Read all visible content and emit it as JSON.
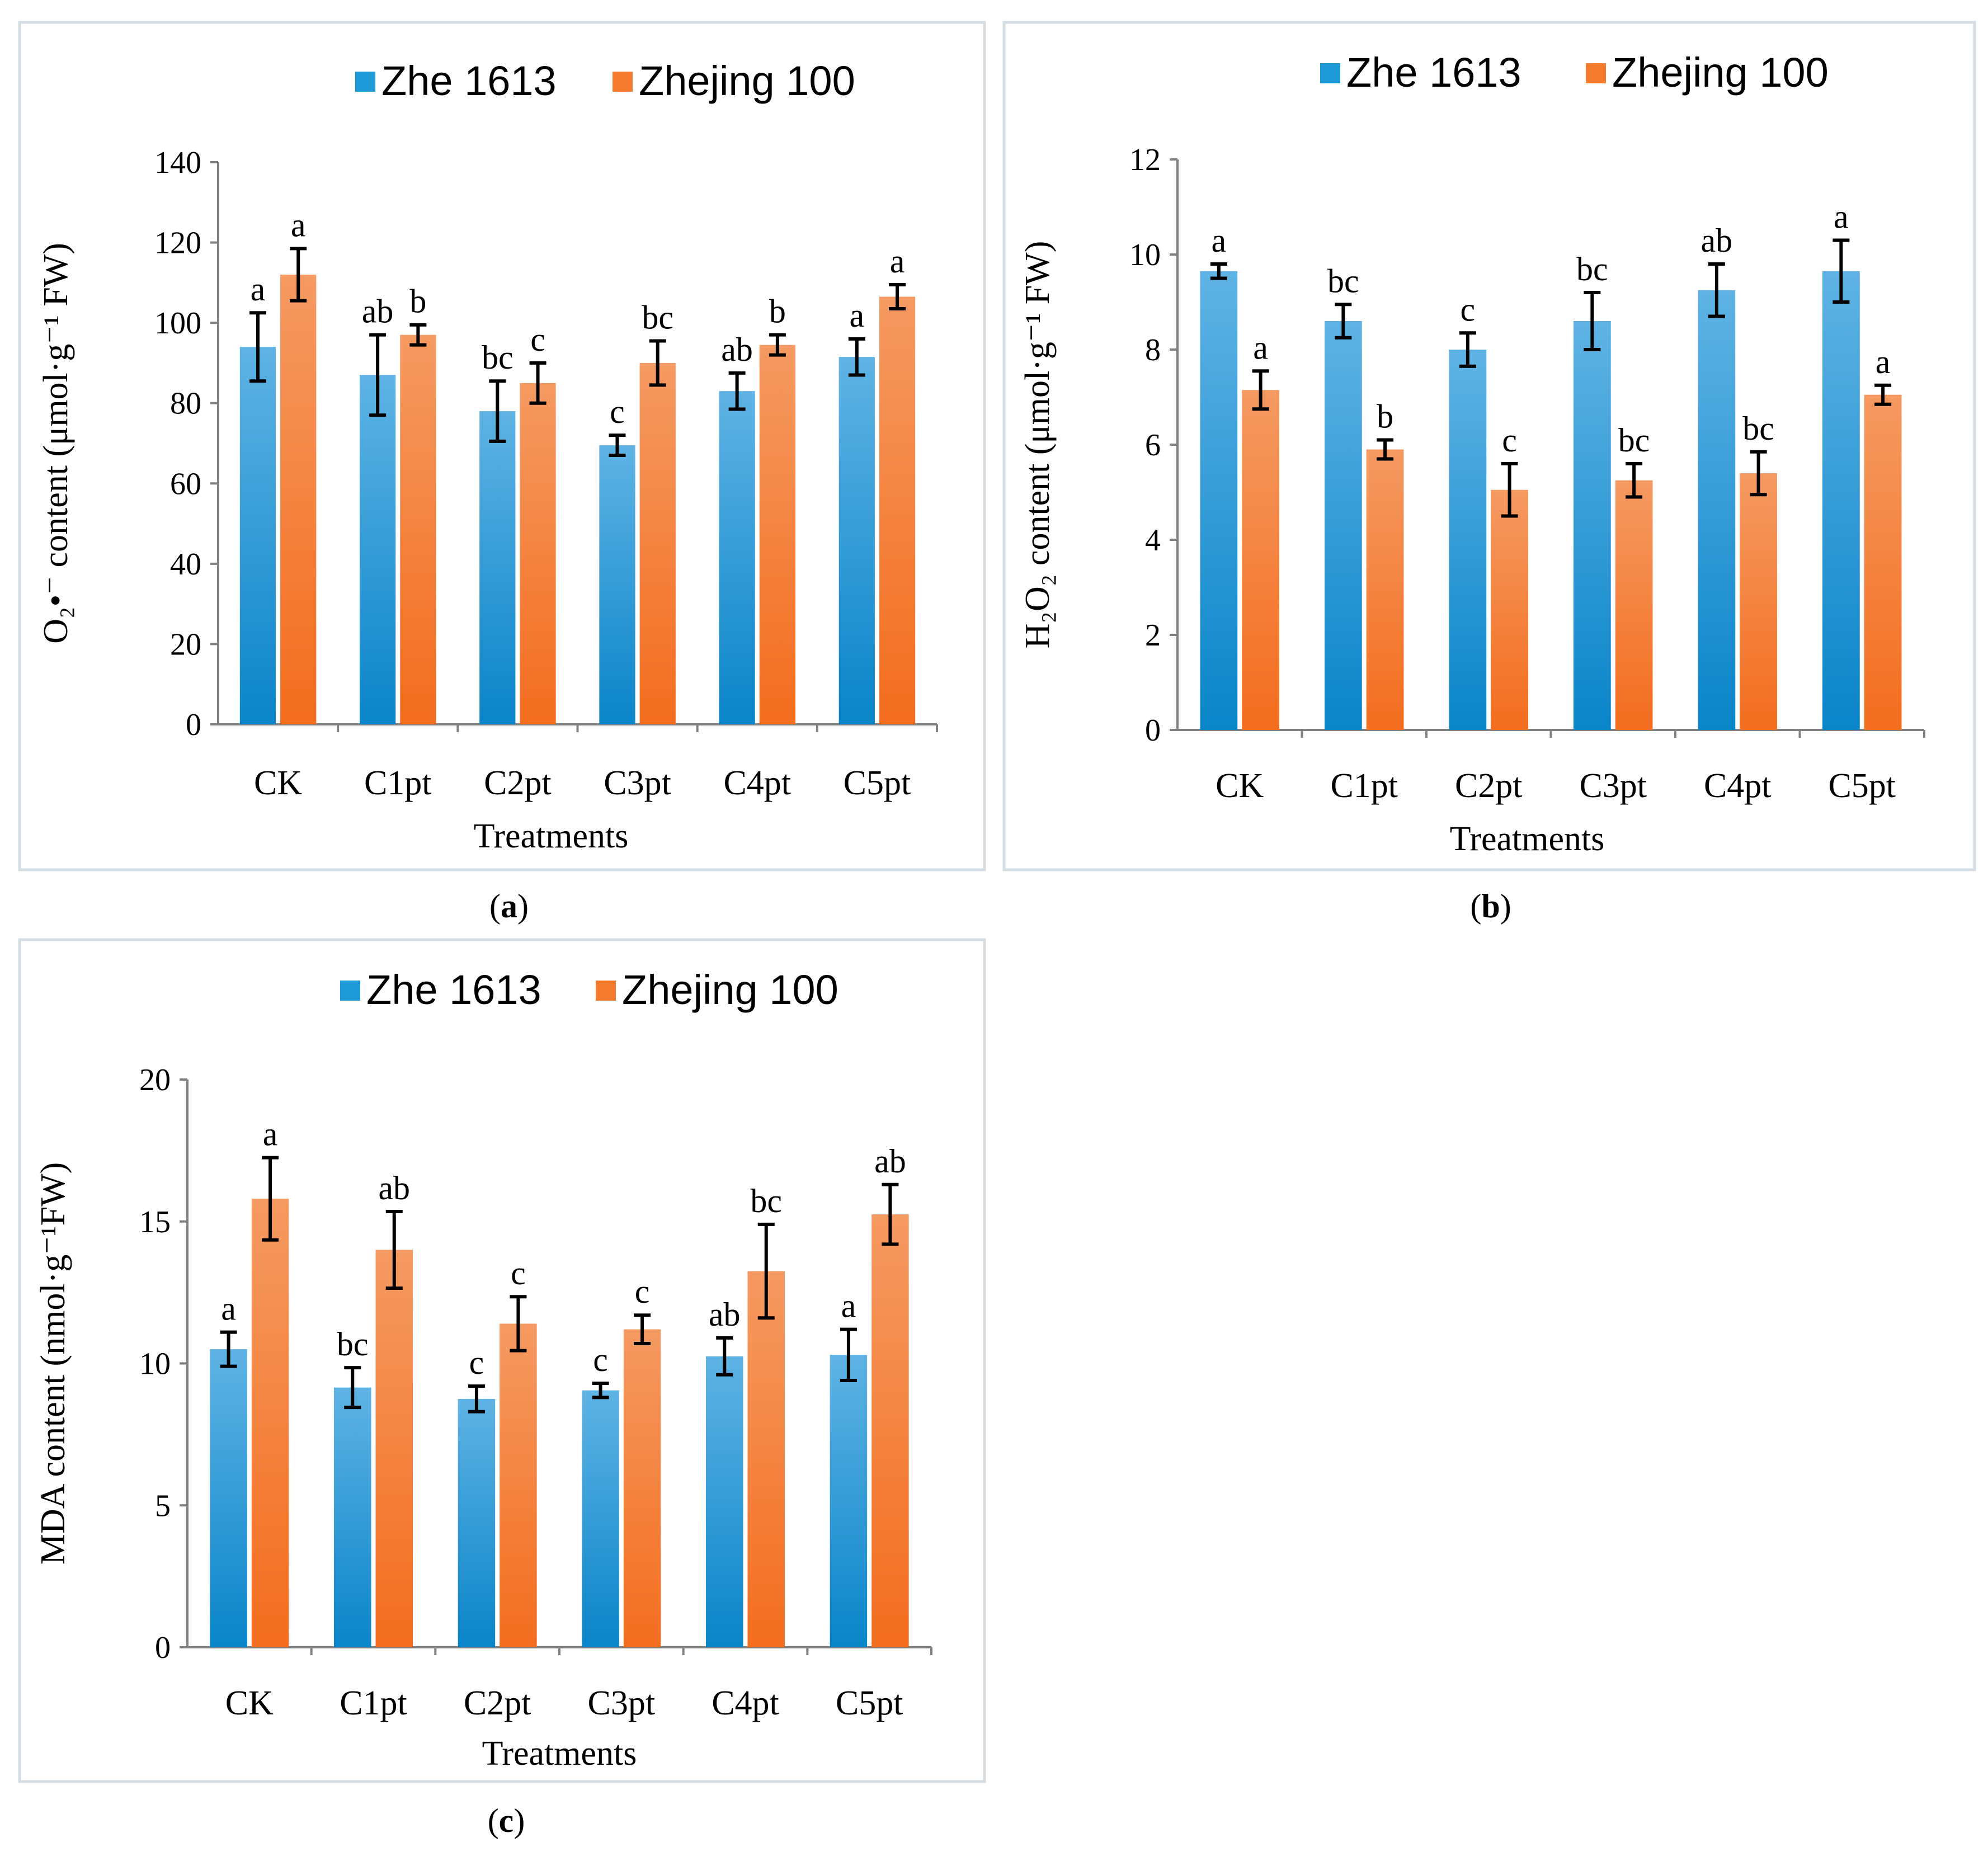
{
  "legend": {
    "series1": "Zhe 1613",
    "series2": "Zhejing 100",
    "color1": "#1e9ad6",
    "color2": "#f47a2d"
  },
  "chart_data": [
    {
      "type": "bar",
      "panel": "a",
      "caption_letter": "a",
      "categories": [
        "CK",
        "C1pt",
        "C2pt",
        "C3pt",
        "C4pt",
        "C5pt"
      ],
      "xlabel": "Treatments",
      "ylabel": "O₂•⁻ content (μmol·g⁻¹ FW)",
      "ylim": [
        0,
        140
      ],
      "yticks": [
        0,
        20,
        40,
        60,
        80,
        100,
        120,
        140
      ],
      "series": [
        {
          "name": "Zhe 1613",
          "values": [
            94,
            87,
            78,
            69.5,
            83,
            91.5
          ],
          "errors": [
            8.5,
            10,
            7.5,
            2.5,
            4.5,
            4.5
          ],
          "letters": [
            "a",
            "ab",
            "bc",
            "c",
            "ab",
            "a"
          ]
        },
        {
          "name": "Zhejing 100",
          "values": [
            112,
            97,
            85,
            90,
            94.5,
            106.5
          ],
          "errors": [
            6.5,
            2.5,
            5,
            5.5,
            2.5,
            3
          ],
          "letters": [
            "a",
            "b",
            "c",
            "bc",
            "b",
            "a"
          ]
        }
      ]
    },
    {
      "type": "bar",
      "panel": "b",
      "caption_letter": "b",
      "categories": [
        "CK",
        "C1pt",
        "C2pt",
        "C3pt",
        "C4pt",
        "C5pt"
      ],
      "xlabel": "Treatments",
      "ylabel": "H₂O₂ content (μmol·g⁻¹ FW)",
      "ylim": [
        0,
        12
      ],
      "yticks": [
        0,
        2,
        4,
        6,
        8,
        10,
        12
      ],
      "series": [
        {
          "name": "Zhe 1613",
          "values": [
            9.65,
            8.6,
            8.0,
            8.6,
            9.25,
            9.65
          ],
          "errors": [
            0.15,
            0.35,
            0.35,
            0.6,
            0.55,
            0.65
          ],
          "letters": [
            "a",
            "bc",
            "c",
            "bc",
            "ab",
            "a"
          ]
        },
        {
          "name": "Zhejing 100",
          "values": [
            7.15,
            5.9,
            5.05,
            5.25,
            5.4,
            7.05
          ],
          "errors": [
            0.4,
            0.2,
            0.55,
            0.35,
            0.45,
            0.2
          ],
          "letters": [
            "a",
            "b",
            "c",
            "bc",
            "bc",
            "a"
          ]
        }
      ]
    },
    {
      "type": "bar",
      "panel": "c",
      "caption_letter": "c",
      "categories": [
        "CK",
        "C1pt",
        "C2pt",
        "C3pt",
        "C4pt",
        "C5pt"
      ],
      "xlabel": "Treatments",
      "ylabel": "MDA content (nmol·g⁻¹FW)",
      "ylim": [
        0,
        20
      ],
      "yticks": [
        0,
        5,
        10,
        15,
        20
      ],
      "series": [
        {
          "name": "Zhe 1613",
          "values": [
            10.5,
            9.15,
            8.75,
            9.05,
            10.25,
            10.3
          ],
          "errors": [
            0.6,
            0.7,
            0.45,
            0.25,
            0.65,
            0.9
          ],
          "letters": [
            "a",
            "bc",
            "c",
            "c",
            "ab",
            "a"
          ]
        },
        {
          "name": "Zhejing 100",
          "values": [
            15.8,
            14.0,
            11.4,
            11.2,
            13.25,
            15.25
          ],
          "errors": [
            1.45,
            1.35,
            0.95,
            0.5,
            1.65,
            1.05
          ],
          "letters": [
            "a",
            "ab",
            "c",
            "c",
            "bc",
            "ab"
          ]
        }
      ]
    }
  ]
}
